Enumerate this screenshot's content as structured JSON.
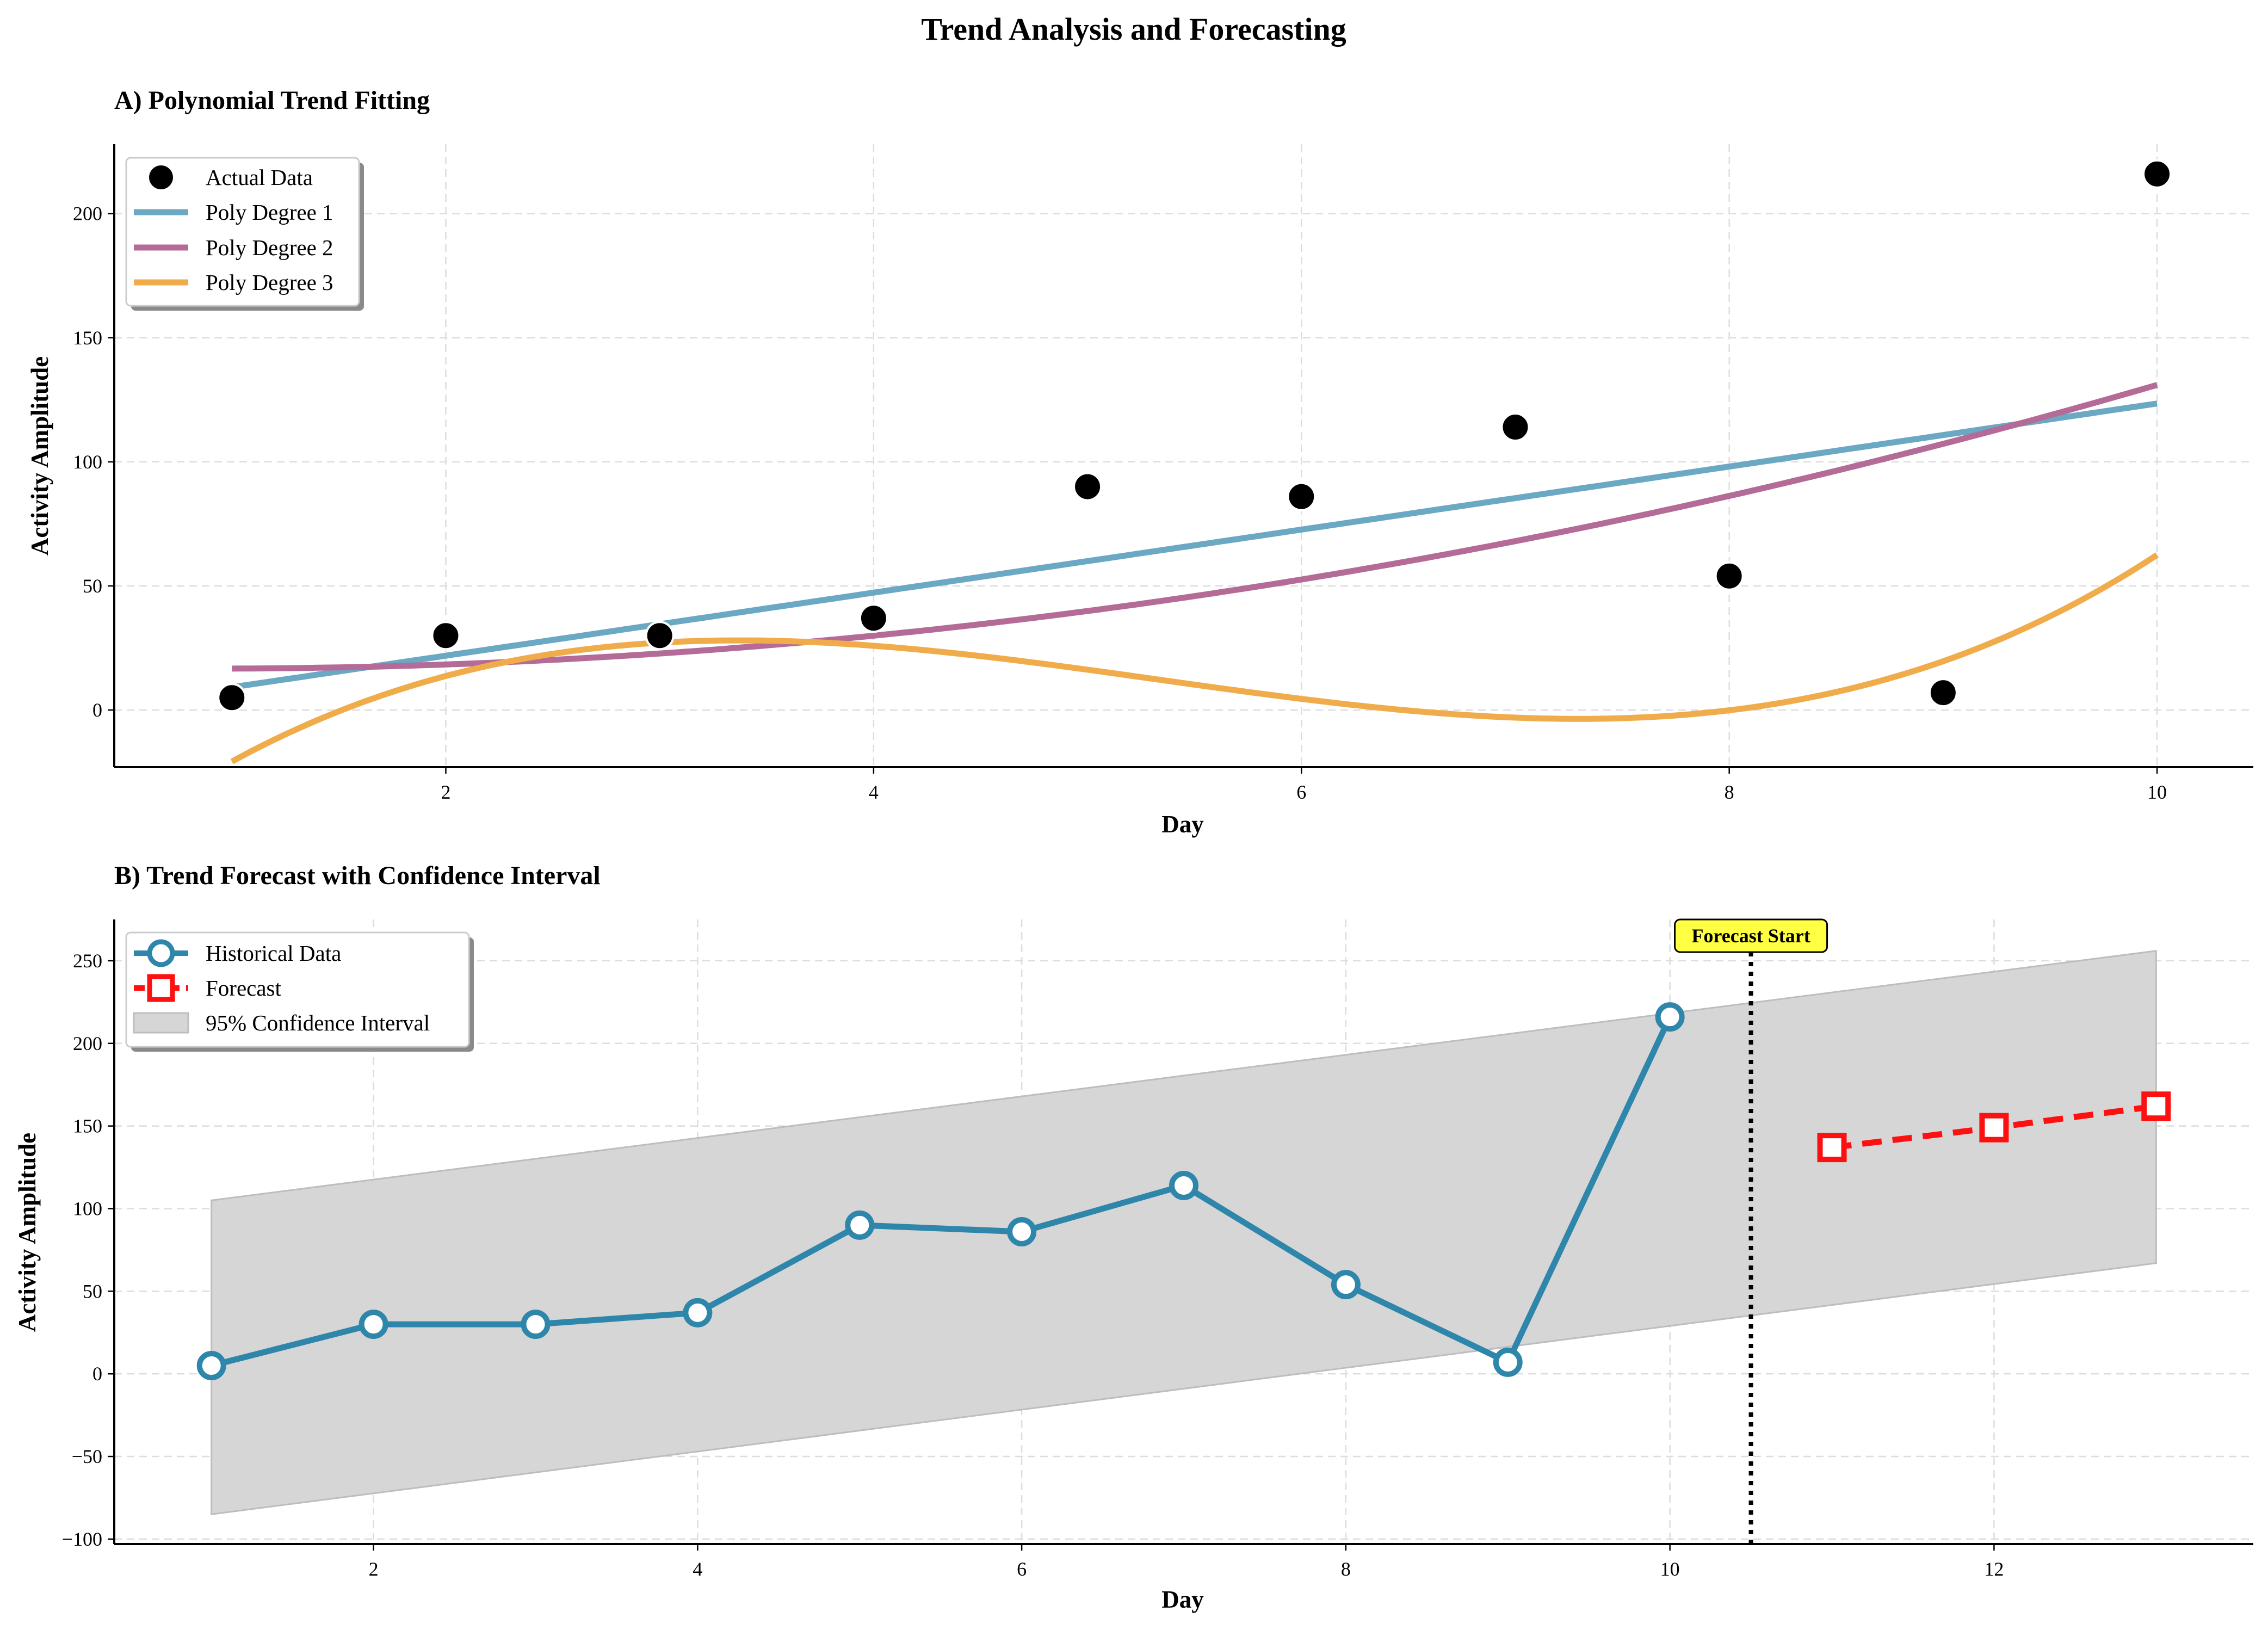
{
  "figure": {
    "title": "Trend Analysis and Forecasting"
  },
  "colors": {
    "actual": "#000000",
    "poly1": "#6aa8c4",
    "poly2": "#b56b97",
    "poly3": "#f0ac4a",
    "historical": "#2e86ab",
    "forecast": "#ff1010",
    "ci_fill": "#d6d6d6",
    "annotation_bg": "#ffff44"
  },
  "chart_data": [
    {
      "type": "scatter+line",
      "title": "A) Polynomial Trend Fitting",
      "xlabel": "Day",
      "ylabel": "Activity Amplitude",
      "xlim": [
        0.45,
        10.45
      ],
      "ylim": [
        -23,
        228
      ],
      "xticks": [
        2,
        4,
        6,
        8,
        10
      ],
      "yticks": [
        0,
        50,
        100,
        150,
        200
      ],
      "grid": true,
      "legend_position": "top-left",
      "series": [
        {
          "name": "Actual Data",
          "kind": "scatter",
          "x": [
            1,
            2,
            3,
            4,
            5,
            6,
            7,
            8,
            9,
            10
          ],
          "y": [
            5,
            30,
            30,
            37,
            90,
            86,
            114,
            54,
            7,
            216
          ]
        },
        {
          "name": "Poly Degree 1",
          "kind": "polynomial",
          "coefficients": [
            -3.5,
            12.7
          ],
          "x_range": [
            1,
            10
          ]
        },
        {
          "name": "Poly Degree 2",
          "kind": "polynomial",
          "coefficients": [
            17.8,
            -2.48,
            1.38
          ],
          "x_range": [
            1,
            10
          ]
        },
        {
          "name": "Poly Degree 3",
          "kind": "polynomial",
          "coefficients": [
            -82.5,
            77.5,
            -16.8,
            1.05
          ],
          "x_range": [
            1,
            10
          ]
        }
      ]
    },
    {
      "type": "line",
      "title": "B) Trend Forecast with Confidence Interval",
      "xlabel": "Day",
      "ylabel": "Activity Amplitude",
      "xlim": [
        0.4,
        13.6
      ],
      "ylim": [
        -103,
        275
      ],
      "xticks": [
        2,
        4,
        6,
        8,
        10,
        12
      ],
      "yticks": [
        -100,
        -50,
        0,
        50,
        100,
        150,
        200,
        250
      ],
      "grid": true,
      "legend_position": "top-left",
      "series": [
        {
          "name": "Historical Data",
          "marker": "circle",
          "x": [
            1,
            2,
            3,
            4,
            5,
            6,
            7,
            8,
            9,
            10
          ],
          "y": [
            5,
            30,
            30,
            37,
            90,
            86,
            114,
            54,
            7,
            216
          ]
        },
        {
          "name": "Forecast",
          "marker": "square",
          "style": "dashed",
          "x": [
            11,
            12,
            13
          ],
          "y": [
            137,
            149,
            162
          ]
        }
      ],
      "confidence_interval": {
        "name": "95% Confidence Interval",
        "x": [
          1,
          13
        ],
        "lower": [
          -85,
          67
        ],
        "upper": [
          105,
          256
        ]
      },
      "annotation": {
        "text": "Forecast Start",
        "x": 10.5
      }
    }
  ]
}
